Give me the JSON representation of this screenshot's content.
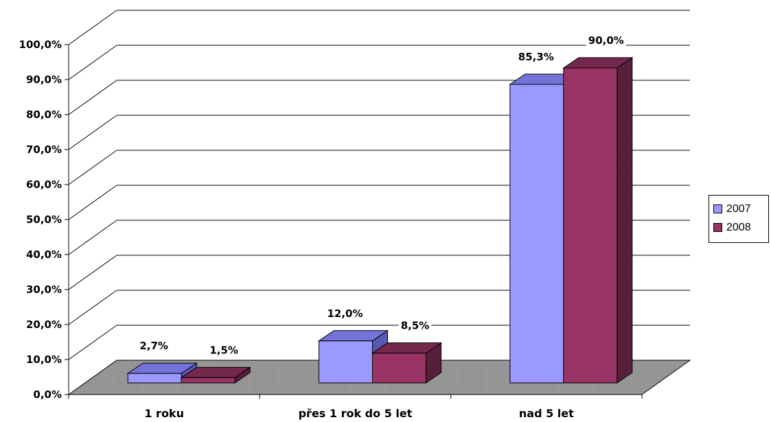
{
  "chart_data": {
    "type": "bar",
    "categories": [
      "1 roku",
      "přes 1 rok do 5 let",
      "nad 5 let"
    ],
    "series": [
      {
        "name": "2007",
        "values": [
          2.7,
          12.0,
          85.3
        ],
        "labels": [
          "2,7%",
          "12,0%",
          "85,3%"
        ],
        "color": "#9999ff"
      },
      {
        "name": "2008",
        "values": [
          1.5,
          8.5,
          90.0
        ],
        "labels": [
          "1,5%",
          "8,5%",
          "90,0%"
        ],
        "color": "#993366"
      }
    ],
    "ylim": [
      0,
      100
    ],
    "yticks": [
      "0,0%",
      "10,0%",
      "20,0%",
      "30,0%",
      "40,0%",
      "50,0%",
      "60,0%",
      "70,0%",
      "80,0%",
      "90,0%",
      "100,0%"
    ],
    "grid": true,
    "legend": "right",
    "three_d": true,
    "floor_color": "#8c8c8c"
  }
}
